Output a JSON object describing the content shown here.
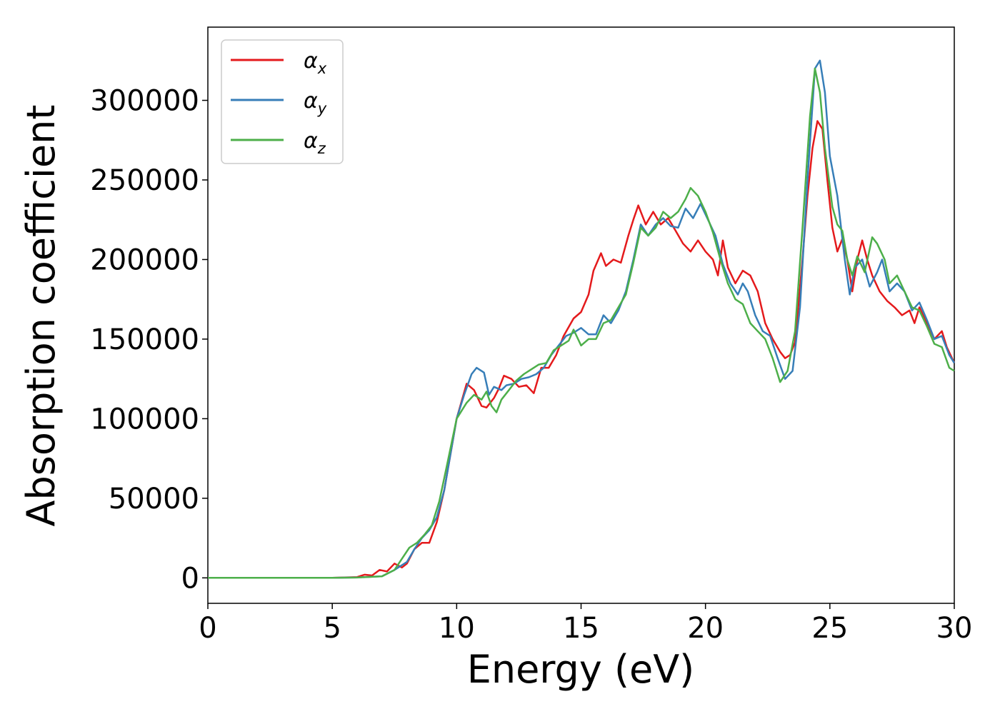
{
  "chart_data": {
    "type": "line",
    "xlabel": "Energy (eV)",
    "ylabel": "Absorption coefficient",
    "xlim": [
      0,
      30
    ],
    "ylim": [
      -16000,
      346000
    ],
    "xticks": [
      0,
      5,
      10,
      15,
      20,
      25,
      30
    ],
    "yticks": [
      0,
      50000,
      100000,
      150000,
      200000,
      250000,
      300000
    ],
    "xtick_labels": [
      "0",
      "5",
      "10",
      "15",
      "20",
      "25",
      "30"
    ],
    "ytick_labels": [
      "0",
      "50000",
      "100000",
      "150000",
      "200000",
      "250000",
      "300000"
    ],
    "grid": false,
    "legend_position": "top-left",
    "series": [
      {
        "name": "α_x",
        "symbol": "α",
        "subscript": "x",
        "color": "#e41a1c",
        "points": [
          [
            0,
            0
          ],
          [
            5,
            0
          ],
          [
            6,
            500
          ],
          [
            6.3,
            2000
          ],
          [
            6.6,
            1500
          ],
          [
            6.9,
            5000
          ],
          [
            7.2,
            4000
          ],
          [
            7.5,
            9000
          ],
          [
            7.8,
            6500
          ],
          [
            8,
            9000
          ],
          [
            8.3,
            18000
          ],
          [
            8.6,
            22000
          ],
          [
            8.9,
            22000
          ],
          [
            9.2,
            35000
          ],
          [
            9.5,
            55000
          ],
          [
            10,
            100000
          ],
          [
            10.4,
            122000
          ],
          [
            10.7,
            118000
          ],
          [
            11,
            108000
          ],
          [
            11.2,
            107000
          ],
          [
            11.5,
            113000
          ],
          [
            11.7,
            119000
          ],
          [
            11.9,
            127000
          ],
          [
            12.2,
            125000
          ],
          [
            12.5,
            120000
          ],
          [
            12.8,
            121000
          ],
          [
            13.1,
            116000
          ],
          [
            13.4,
            132000
          ],
          [
            13.7,
            132000
          ],
          [
            14,
            140000
          ],
          [
            14.3,
            152000
          ],
          [
            14.7,
            163000
          ],
          [
            15,
            167000
          ],
          [
            15.3,
            178000
          ],
          [
            15.5,
            193000
          ],
          [
            15.8,
            204000
          ],
          [
            16,
            196000
          ],
          [
            16.3,
            200000
          ],
          [
            16.6,
            198000
          ],
          [
            16.9,
            215000
          ],
          [
            17.1,
            225000
          ],
          [
            17.3,
            234000
          ],
          [
            17.6,
            222000
          ],
          [
            17.9,
            230000
          ],
          [
            18.2,
            222000
          ],
          [
            18.5,
            226000
          ],
          [
            18.8,
            218000
          ],
          [
            19.1,
            210000
          ],
          [
            19.4,
            205000
          ],
          [
            19.7,
            212000
          ],
          [
            20,
            205000
          ],
          [
            20.3,
            200000
          ],
          [
            20.5,
            190000
          ],
          [
            20.7,
            212000
          ],
          [
            20.9,
            195000
          ],
          [
            21.2,
            185000
          ],
          [
            21.5,
            193000
          ],
          [
            21.8,
            190000
          ],
          [
            22.1,
            180000
          ],
          [
            22.4,
            160000
          ],
          [
            22.7,
            150000
          ],
          [
            23,
            142000
          ],
          [
            23.2,
            138000
          ],
          [
            23.4,
            140000
          ],
          [
            23.6,
            148000
          ],
          [
            23.9,
            200000
          ],
          [
            24.1,
            240000
          ],
          [
            24.3,
            270000
          ],
          [
            24.5,
            287000
          ],
          [
            24.7,
            282000
          ],
          [
            24.9,
            250000
          ],
          [
            25.1,
            220000
          ],
          [
            25.3,
            205000
          ],
          [
            25.5,
            213000
          ],
          [
            25.7,
            200000
          ],
          [
            25.9,
            180000
          ],
          [
            26.1,
            200000
          ],
          [
            26.3,
            212000
          ],
          [
            26.5,
            200000
          ],
          [
            26.7,
            190000
          ],
          [
            27,
            180000
          ],
          [
            27.3,
            174000
          ],
          [
            27.6,
            170000
          ],
          [
            27.9,
            165000
          ],
          [
            28.2,
            168000
          ],
          [
            28.4,
            160000
          ],
          [
            28.6,
            170000
          ],
          [
            28.9,
            160000
          ],
          [
            29.2,
            150000
          ],
          [
            29.5,
            155000
          ],
          [
            29.7,
            145000
          ],
          [
            30,
            135000
          ]
        ]
      },
      {
        "name": "α_y",
        "symbol": "α",
        "subscript": "y",
        "color": "#377eb8",
        "points": [
          [
            0,
            0
          ],
          [
            5,
            0
          ],
          [
            6,
            300
          ],
          [
            7,
            1000
          ],
          [
            7.5,
            5000
          ],
          [
            8,
            10000
          ],
          [
            8.3,
            18000
          ],
          [
            8.6,
            25000
          ],
          [
            8.9,
            30000
          ],
          [
            9.2,
            38000
          ],
          [
            9.5,
            55000
          ],
          [
            10,
            100000
          ],
          [
            10.3,
            115000
          ],
          [
            10.6,
            128000
          ],
          [
            10.8,
            132000
          ],
          [
            11.1,
            129000
          ],
          [
            11.3,
            115000
          ],
          [
            11.5,
            120000
          ],
          [
            11.8,
            118000
          ],
          [
            12,
            121000
          ],
          [
            12.3,
            122000
          ],
          [
            12.6,
            125000
          ],
          [
            12.9,
            126000
          ],
          [
            13.2,
            128000
          ],
          [
            13.5,
            132000
          ],
          [
            13.8,
            140000
          ],
          [
            14.1,
            146000
          ],
          [
            14.4,
            152000
          ],
          [
            14.7,
            154000
          ],
          [
            15,
            157000
          ],
          [
            15.3,
            153000
          ],
          [
            15.6,
            153000
          ],
          [
            15.9,
            165000
          ],
          [
            16.2,
            160000
          ],
          [
            16.5,
            168000
          ],
          [
            16.8,
            180000
          ],
          [
            17.1,
            200000
          ],
          [
            17.4,
            222000
          ],
          [
            17.7,
            215000
          ],
          [
            18,
            222000
          ],
          [
            18.3,
            226000
          ],
          [
            18.6,
            221000
          ],
          [
            18.9,
            220000
          ],
          [
            19.2,
            232000
          ],
          [
            19.5,
            226000
          ],
          [
            19.8,
            235000
          ],
          [
            20.1,
            225000
          ],
          [
            20.4,
            215000
          ],
          [
            20.7,
            197000
          ],
          [
            21,
            185000
          ],
          [
            21.3,
            178000
          ],
          [
            21.5,
            185000
          ],
          [
            21.7,
            180000
          ],
          [
            22,
            165000
          ],
          [
            22.3,
            155000
          ],
          [
            22.6,
            152000
          ],
          [
            22.9,
            138000
          ],
          [
            23.2,
            125000
          ],
          [
            23.5,
            130000
          ],
          [
            23.8,
            170000
          ],
          [
            24.1,
            250000
          ],
          [
            24.4,
            320000
          ],
          [
            24.6,
            325000
          ],
          [
            24.8,
            305000
          ],
          [
            25.0,
            265000
          ],
          [
            25.3,
            240000
          ],
          [
            25.6,
            200000
          ],
          [
            25.8,
            178000
          ],
          [
            26,
            195000
          ],
          [
            26.3,
            200000
          ],
          [
            26.6,
            183000
          ],
          [
            26.9,
            192000
          ],
          [
            27.1,
            200000
          ],
          [
            27.4,
            180000
          ],
          [
            27.7,
            185000
          ],
          [
            28,
            180000
          ],
          [
            28.3,
            168000
          ],
          [
            28.6,
            173000
          ],
          [
            28.9,
            162000
          ],
          [
            29.2,
            150000
          ],
          [
            29.5,
            152000
          ],
          [
            29.8,
            140000
          ],
          [
            30,
            135000
          ]
        ]
      },
      {
        "name": "α_z",
        "symbol": "α",
        "subscript": "z",
        "color": "#4daf4a",
        "points": [
          [
            0,
            0
          ],
          [
            5,
            0
          ],
          [
            6,
            200
          ],
          [
            7,
            1000
          ],
          [
            7.5,
            5000
          ],
          [
            7.8,
            12000
          ],
          [
            8.1,
            19000
          ],
          [
            8.4,
            22000
          ],
          [
            8.7,
            27000
          ],
          [
            9,
            33000
          ],
          [
            9.3,
            48000
          ],
          [
            9.6,
            70000
          ],
          [
            10,
            100000
          ],
          [
            10.4,
            110000
          ],
          [
            10.7,
            115000
          ],
          [
            11,
            112000
          ],
          [
            11.2,
            117000
          ],
          [
            11.4,
            108000
          ],
          [
            11.6,
            104000
          ],
          [
            11.8,
            112000
          ],
          [
            12.1,
            118000
          ],
          [
            12.4,
            124000
          ],
          [
            12.7,
            128000
          ],
          [
            13,
            131000
          ],
          [
            13.3,
            134000
          ],
          [
            13.6,
            135000
          ],
          [
            13.9,
            143000
          ],
          [
            14.2,
            146000
          ],
          [
            14.5,
            149000
          ],
          [
            14.7,
            156000
          ],
          [
            15,
            146000
          ],
          [
            15.3,
            150000
          ],
          [
            15.6,
            150000
          ],
          [
            15.9,
            160000
          ],
          [
            16.2,
            162000
          ],
          [
            16.5,
            170000
          ],
          [
            16.8,
            178000
          ],
          [
            17.1,
            198000
          ],
          [
            17.4,
            220000
          ],
          [
            17.7,
            215000
          ],
          [
            18,
            220000
          ],
          [
            18.3,
            230000
          ],
          [
            18.6,
            226000
          ],
          [
            18.9,
            230000
          ],
          [
            19.2,
            238000
          ],
          [
            19.4,
            245000
          ],
          [
            19.7,
            240000
          ],
          [
            20,
            230000
          ],
          [
            20.3,
            217000
          ],
          [
            20.6,
            200000
          ],
          [
            20.9,
            185000
          ],
          [
            21.2,
            175000
          ],
          [
            21.5,
            172000
          ],
          [
            21.8,
            160000
          ],
          [
            22.1,
            155000
          ],
          [
            22.4,
            150000
          ],
          [
            22.7,
            138000
          ],
          [
            23.0,
            123000
          ],
          [
            23.3,
            130000
          ],
          [
            23.6,
            155000
          ],
          [
            23.9,
            220000
          ],
          [
            24.2,
            290000
          ],
          [
            24.4,
            320000
          ],
          [
            24.6,
            305000
          ],
          [
            24.8,
            270000
          ],
          [
            25.1,
            233000
          ],
          [
            25.3,
            222000
          ],
          [
            25.5,
            218000
          ],
          [
            25.7,
            200000
          ],
          [
            25.9,
            190000
          ],
          [
            26.1,
            202000
          ],
          [
            26.4,
            192000
          ],
          [
            26.7,
            214000
          ],
          [
            26.9,
            210000
          ],
          [
            27.2,
            200000
          ],
          [
            27.4,
            185000
          ],
          [
            27.7,
            190000
          ],
          [
            28,
            180000
          ],
          [
            28.3,
            170000
          ],
          [
            28.6,
            168000
          ],
          [
            28.9,
            158000
          ],
          [
            29.2,
            147000
          ],
          [
            29.5,
            145000
          ],
          [
            29.8,
            132000
          ],
          [
            30,
            130000
          ]
        ]
      }
    ]
  }
}
